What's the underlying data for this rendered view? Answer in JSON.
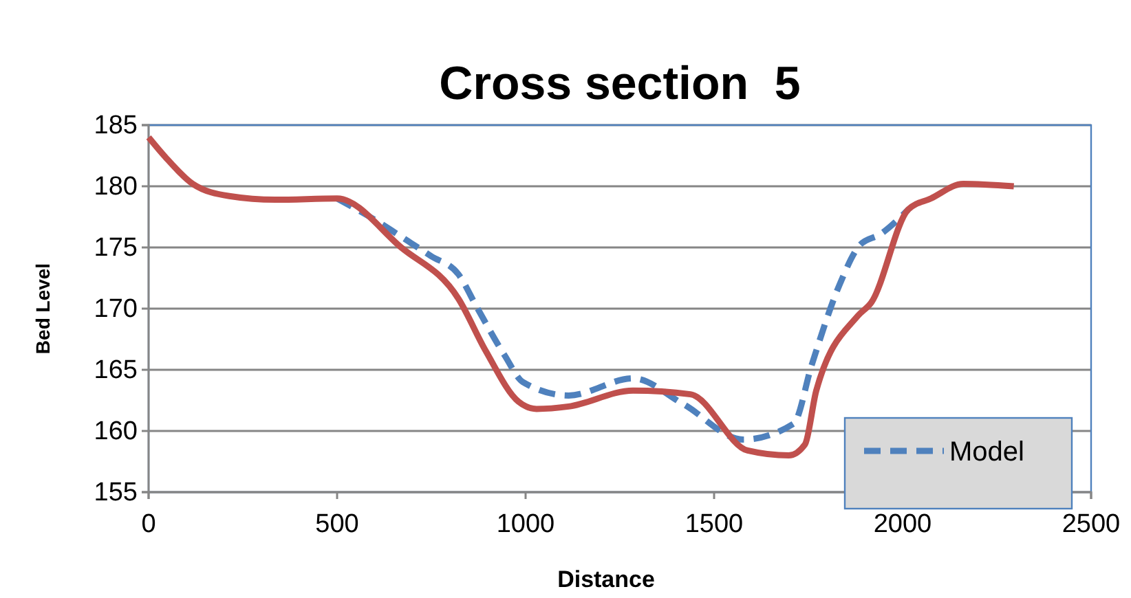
{
  "chart_data": {
    "type": "line",
    "title": "Cross section  5",
    "xlabel": "Distance",
    "ylabel": "Bed Level",
    "xlim": [
      0,
      2500
    ],
    "xticks": [
      0,
      500,
      1000,
      1500,
      2000,
      2500
    ],
    "ylim": [
      155,
      185
    ],
    "yticks": [
      155,
      160,
      165,
      170,
      175,
      180,
      185
    ],
    "grid": "y",
    "legend": "bottom right",
    "marker": "none",
    "series": [
      {
        "name": "Model",
        "color": "#4f81bd",
        "line_style": "dashed",
        "x": [
          500,
          603,
          689,
          749,
          822,
          871,
          944,
          993,
          1114,
          1285,
          1418,
          1577,
          1711,
          1759,
          1832,
          1887,
          1942,
          2015
        ],
        "values": [
          179,
          177.2,
          175.5,
          174.3,
          172.8,
          170.1,
          166.2,
          164,
          162.9,
          164.3,
          162.2,
          159.3,
          160.6,
          165.4,
          171.9,
          175.2,
          176.1,
          178.1
        ]
      },
      {
        "color": "#c0504d",
        "line_style": "solid",
        "x": [
          0,
          44,
          117,
          214,
          336,
          500,
          670,
          822,
          895,
          981,
          1029,
          1114,
          1285,
          1437,
          1589,
          1698,
          1741,
          1771,
          1881,
          1917,
          2015,
          2075,
          2161,
          2295
        ],
        "values": [
          184,
          182.4,
          180.2,
          179.2,
          178.9,
          179,
          175,
          170.8,
          166.5,
          162.4,
          161.8,
          162,
          163.3,
          163,
          158.4,
          158,
          158.9,
          163.3,
          169.4,
          170.5,
          178.1,
          179,
          180.2,
          180
        ]
      }
    ]
  }
}
